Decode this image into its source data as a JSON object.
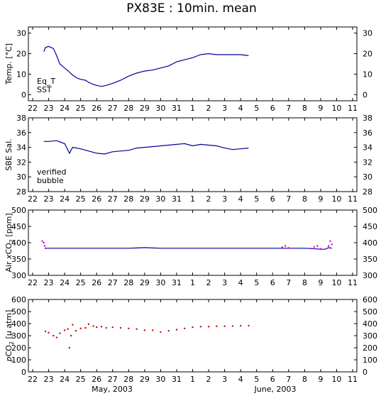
{
  "title": "PX83E : 10min. mean",
  "month_labels": [
    "May, 2003",
    "June, 2003"
  ],
  "colors": {
    "eq_t": "#cc0000",
    "sst": "#000099",
    "verified": "#000099",
    "bubble": "#cc00cc",
    "pco2": "#cc0000"
  },
  "chart_data": [
    {
      "type": "line",
      "ylabel": "Temp. [°C]",
      "xlim": [
        22,
        11
      ],
      "x_tick_labels": [
        "22",
        "23",
        "24",
        "25",
        "26",
        "27",
        "28",
        "29",
        "30",
        "31",
        "1",
        "2",
        "3",
        "4",
        "5",
        "6",
        "7",
        "8",
        "9",
        "10",
        "11"
      ],
      "y_ticks": [
        0,
        10,
        20,
        30
      ],
      "ylim": [
        -3,
        33
      ],
      "legend": [
        "Eq_T",
        "SST"
      ],
      "series": [
        {
          "name": "Eq_T",
          "values": []
        },
        {
          "name": "SST",
          "points": [
            [
              22.7,
              21
            ],
            [
              22.8,
              23
            ],
            [
              23.0,
              23.5
            ],
            [
              23.3,
              22.5
            ],
            [
              23.5,
              19
            ],
            [
              23.7,
              15
            ],
            [
              24.0,
              13
            ],
            [
              24.3,
              11
            ],
            [
              24.5,
              9.5
            ],
            [
              24.8,
              8
            ],
            [
              25.0,
              7.5
            ],
            [
              25.3,
              7
            ],
            [
              25.5,
              6
            ],
            [
              25.8,
              5
            ],
            [
              26.0,
              4.5
            ],
            [
              26.3,
              4
            ],
            [
              26.6,
              4.5
            ],
            [
              27.0,
              5.5
            ],
            [
              27.5,
              7
            ],
            [
              28.0,
              9
            ],
            [
              28.5,
              10.5
            ],
            [
              29.0,
              11.5
            ],
            [
              29.5,
              12
            ],
            [
              30.0,
              13
            ],
            [
              30.5,
              14
            ],
            [
              31.0,
              16
            ],
            [
              31.5,
              17
            ],
            [
              32.0,
              18
            ],
            [
              32.5,
              19.5
            ],
            [
              33.0,
              20
            ],
            [
              33.5,
              19.5
            ],
            [
              34.0,
              19.5
            ],
            [
              34.5,
              19.5
            ],
            [
              35.0,
              19.5
            ],
            [
              35.5,
              19
            ]
          ]
        }
      ]
    },
    {
      "type": "line",
      "ylabel": "SBE Sal.",
      "xlim": [
        22,
        11
      ],
      "x_tick_labels": [
        "22",
        "23",
        "24",
        "25",
        "26",
        "27",
        "28",
        "29",
        "30",
        "31",
        "1",
        "2",
        "3",
        "4",
        "5",
        "6",
        "7",
        "8",
        "9",
        "10",
        "11"
      ],
      "y_ticks": [
        28,
        30,
        32,
        34,
        36,
        38
      ],
      "ylim": [
        28,
        38
      ],
      "legend": [
        "verified",
        "bubble"
      ],
      "series": [
        {
          "name": "verified",
          "points": [
            [
              22.7,
              34.8
            ],
            [
              23.0,
              34.8
            ],
            [
              23.5,
              34.9
            ],
            [
              24.0,
              34.5
            ],
            [
              24.3,
              33.2
            ],
            [
              24.5,
              34
            ],
            [
              25.0,
              33.8
            ],
            [
              25.5,
              33.5
            ],
            [
              26.0,
              33.2
            ],
            [
              26.5,
              33.1
            ],
            [
              27.0,
              33.4
            ],
            [
              27.5,
              33.5
            ],
            [
              28.0,
              33.6
            ],
            [
              28.5,
              33.9
            ],
            [
              29.0,
              34
            ],
            [
              29.5,
              34.1
            ],
            [
              30.0,
              34.2
            ],
            [
              30.5,
              34.3
            ],
            [
              31.0,
              34.4
            ],
            [
              31.5,
              34.5
            ],
            [
              32.0,
              34.2
            ],
            [
              32.5,
              34.4
            ],
            [
              33.0,
              34.3
            ],
            [
              33.5,
              34.2
            ],
            [
              34.0,
              33.9
            ],
            [
              34.5,
              33.7
            ],
            [
              35.0,
              33.8
            ],
            [
              35.5,
              33.9
            ]
          ]
        },
        {
          "name": "bubble",
          "values": []
        }
      ]
    },
    {
      "type": "line",
      "ylabel_parts": [
        "Air ",
        "x",
        "CO",
        "2",
        " [ppm]"
      ],
      "xlim": [
        22,
        11
      ],
      "x_tick_labels": [
        "22",
        "23",
        "24",
        "25",
        "26",
        "27",
        "28",
        "29",
        "30",
        "31",
        "1",
        "2",
        "3",
        "4",
        "5",
        "6",
        "7",
        "8",
        "9",
        "10",
        "11"
      ],
      "y_ticks": [
        300,
        350,
        400,
        450,
        500
      ],
      "ylim": [
        300,
        500
      ],
      "series": [
        {
          "name": "verified",
          "points": [
            [
              22.8,
              383
            ],
            [
              24.0,
              383
            ],
            [
              26.0,
              383
            ],
            [
              28.0,
              383
            ],
            [
              28.5,
              384
            ],
            [
              29.0,
              385
            ],
            [
              29.5,
              384
            ],
            [
              30.0,
              383
            ],
            [
              32.0,
              383
            ],
            [
              34.0,
              383
            ],
            [
              36.0,
              383
            ],
            [
              37.5,
              383
            ],
            [
              38.0,
              383
            ],
            [
              38.5,
              383
            ],
            [
              39.0,
              383
            ],
            [
              39.5,
              382
            ],
            [
              40.0,
              380
            ],
            [
              40.3,
              380
            ],
            [
              40.5,
              385
            ],
            [
              40.7,
              383
            ]
          ]
        },
        {
          "name": "bubble",
          "points": [
            [
              22.6,
              405
            ],
            [
              22.7,
              400
            ],
            [
              22.75,
              390
            ],
            [
              22.8,
              383
            ],
            [
              37.6,
              386
            ],
            [
              37.8,
              390
            ],
            [
              38.0,
              384
            ],
            [
              39.4,
              382
            ],
            [
              39.6,
              387
            ],
            [
              39.8,
              390
            ],
            [
              40.0,
              381
            ],
            [
              40.5,
              390
            ],
            [
              40.6,
              405
            ],
            [
              40.7,
              395
            ]
          ]
        }
      ]
    },
    {
      "type": "scatter",
      "ylabel_parts": [
        "p",
        "CO",
        "2",
        " [μ atm]"
      ],
      "xlim": [
        22,
        11
      ],
      "x_tick_labels": [
        "22",
        "23",
        "24",
        "25",
        "26",
        "27",
        "28",
        "29",
        "30",
        "31",
        "1",
        "2",
        "3",
        "4",
        "5",
        "6",
        "7",
        "8",
        "9",
        "10",
        "11"
      ],
      "y_ticks": [
        0,
        100,
        200,
        300,
        400,
        500,
        600
      ],
      "ylim": [
        0,
        600
      ],
      "series": [
        {
          "name": "pCO2",
          "points": [
            [
              22.8,
              335
            ],
            [
              23.0,
              325
            ],
            [
              23.3,
              300
            ],
            [
              23.5,
              285
            ],
            [
              23.7,
              320
            ],
            [
              24.0,
              345
            ],
            [
              24.2,
              355
            ],
            [
              24.3,
              200
            ],
            [
              24.4,
              300
            ],
            [
              24.5,
              390
            ],
            [
              24.7,
              340
            ],
            [
              25.0,
              360
            ],
            [
              25.3,
              365
            ],
            [
              25.5,
              395
            ],
            [
              25.8,
              380
            ],
            [
              26.0,
              370
            ],
            [
              26.3,
              375
            ],
            [
              26.6,
              365
            ],
            [
              27.0,
              370
            ],
            [
              27.5,
              365
            ],
            [
              28.0,
              360
            ],
            [
              28.5,
              355
            ],
            [
              29.0,
              345
            ],
            [
              29.5,
              345
            ],
            [
              30.0,
              330
            ],
            [
              30.5,
              340
            ],
            [
              31.0,
              350
            ],
            [
              31.5,
              360
            ],
            [
              32.0,
              370
            ],
            [
              32.5,
              375
            ],
            [
              33.0,
              375
            ],
            [
              33.5,
              378
            ],
            [
              34.0,
              378
            ],
            [
              34.5,
              380
            ],
            [
              35.0,
              382
            ],
            [
              35.5,
              383
            ]
          ]
        }
      ]
    }
  ]
}
